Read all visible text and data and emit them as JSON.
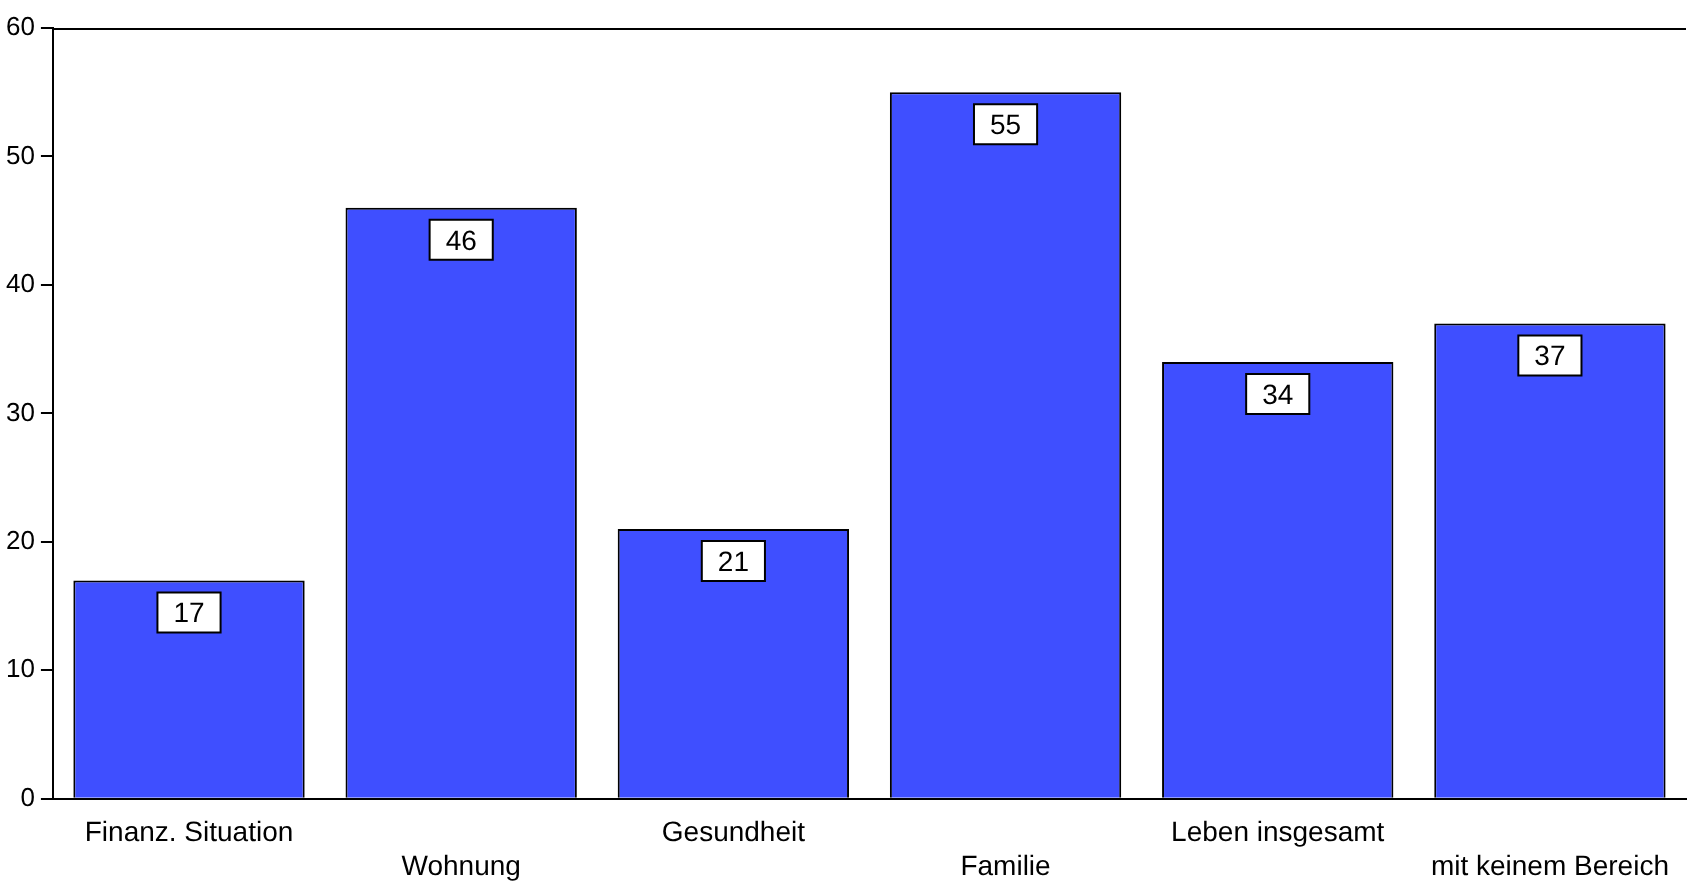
{
  "chart_data": {
    "type": "bar",
    "categories": [
      "Finanz. Situation",
      "Wohnung",
      "Gesundheit",
      "Familie",
      "Leben insgesamt",
      "mit keinem Bereich"
    ],
    "values": [
      17,
      46,
      21,
      55,
      34,
      37
    ],
    "color": "#3f4fff",
    "ylim": [
      0,
      60
    ],
    "yticks": [
      0,
      10,
      20,
      30,
      40,
      50,
      60
    ],
    "grid": false,
    "data_labels": true
  }
}
